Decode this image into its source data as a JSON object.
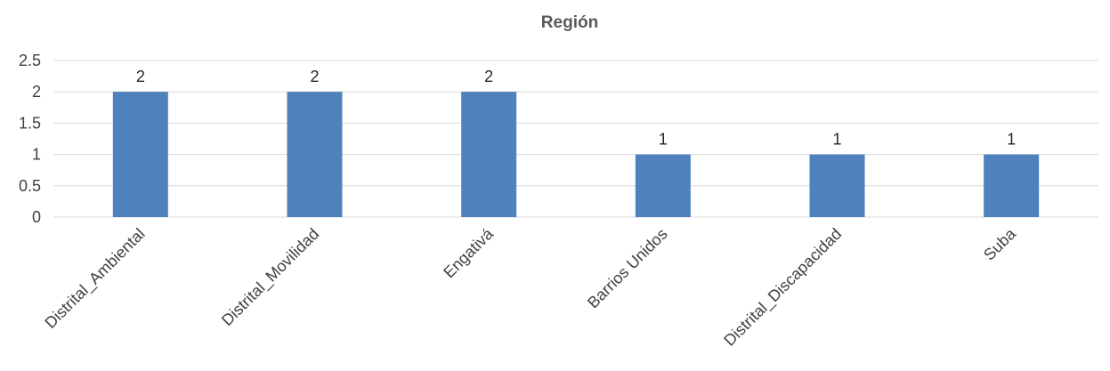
{
  "chart_data": {
    "type": "bar",
    "title": "Región",
    "xlabel": "",
    "ylabel": "",
    "categories": [
      "Distrital_Ambiental",
      "Distrital_Movilidad",
      "Engativá",
      "Barrios Unidos",
      "Distrital_Discapacidad",
      "Suba"
    ],
    "values": [
      2,
      2,
      2,
      1,
      1,
      1
    ],
    "data_labels": [
      "2",
      "2",
      "2",
      "1",
      "1",
      "1"
    ],
    "yticks": [
      "0",
      "0.5",
      "1",
      "1.5",
      "2",
      "2.5"
    ],
    "ylim": [
      0,
      2.5
    ],
    "grid": true,
    "legend": "none",
    "bar_color": "#4f81bd"
  }
}
